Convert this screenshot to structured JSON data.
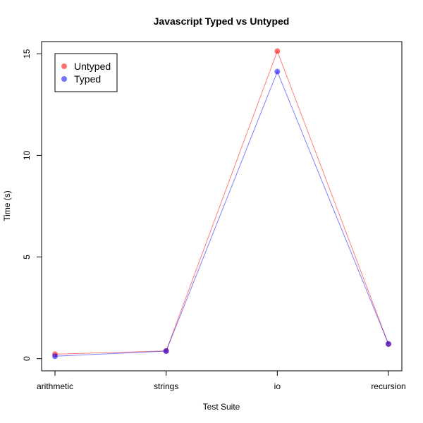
{
  "chart_data": {
    "type": "line",
    "title": "Javascript Typed vs Untyped",
    "xlabel": "Test Suite",
    "ylabel": "Time (s)",
    "categories": [
      "arithmetic",
      "strings",
      "io",
      "recursion"
    ],
    "yticks": [
      0,
      5,
      10,
      15
    ],
    "ylim": [
      -0.6,
      15.6
    ],
    "legend_position": "top-left",
    "series": [
      {
        "name": "Untyped",
        "color": "#ff0000",
        "values": [
          0.22,
          0.38,
          15.13,
          0.72
        ]
      },
      {
        "name": "Typed",
        "color": "#0000ff",
        "values": [
          0.12,
          0.37,
          14.12,
          0.72
        ]
      }
    ]
  }
}
